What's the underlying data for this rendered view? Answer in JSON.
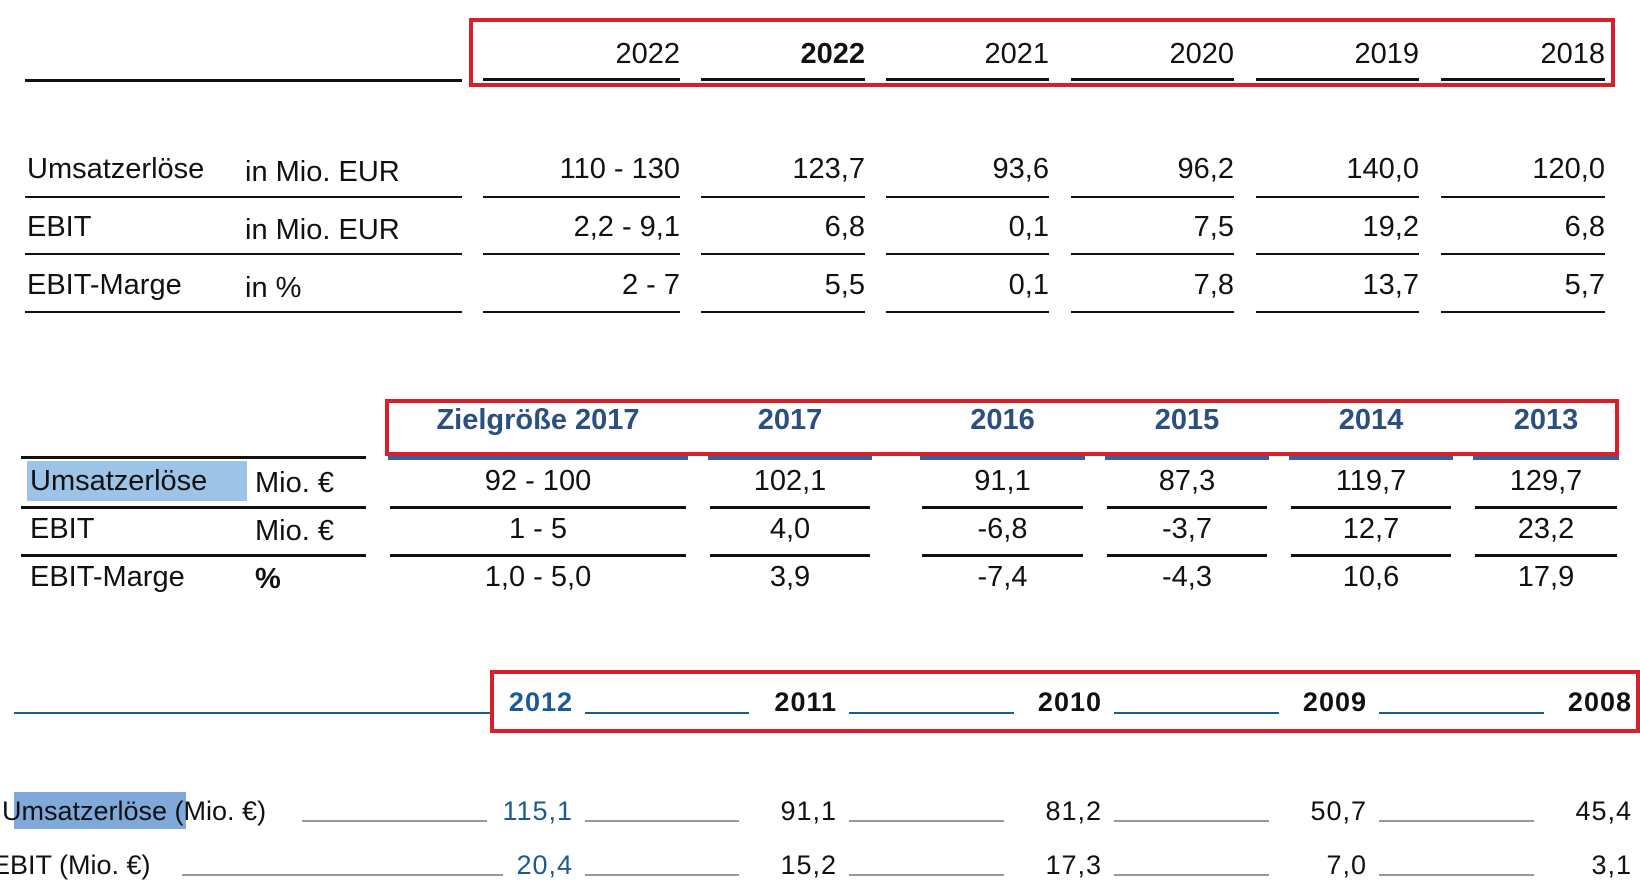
{
  "table_2018_2022": {
    "headers": [
      "2022",
      "2022",
      "2021",
      "2020",
      "2019",
      "2018"
    ],
    "header_bold": [
      false,
      true,
      false,
      false,
      false,
      false
    ],
    "rows": [
      {
        "label": "Umsatzerlöse",
        "unit": "in Mio. EUR",
        "values": [
          "110 - 130",
          "123,7",
          "93,6",
          "96,2",
          "140,0",
          "120,0"
        ]
      },
      {
        "label": "EBIT",
        "unit": "in Mio. EUR",
        "values": [
          "2,2 - 9,1",
          "6,8",
          "0,1",
          "7,5",
          "19,2",
          "6,8"
        ]
      },
      {
        "label": "EBIT-Marge",
        "unit": "in %",
        "values": [
          "2 - 7",
          "5,5",
          "0,1",
          "7,8",
          "13,7",
          "5,7"
        ]
      }
    ]
  },
  "table_2013_2017": {
    "headers": [
      "Zielgröße 2017",
      "2017",
      "2016",
      "2015",
      "2014",
      "2013"
    ],
    "rows": [
      {
        "label": "Umsatzerlöse",
        "unit": "Mio. €",
        "values": [
          "92 - 100",
          "102,1",
          "91,1",
          "87,3",
          "119,7",
          "129,7"
        ]
      },
      {
        "label": "EBIT",
        "unit": "Mio. €",
        "values": [
          "1 - 5",
          "4,0",
          "-6,8",
          "-3,7",
          "12,7",
          "23,2"
        ]
      },
      {
        "label": "EBIT-Marge",
        "unit": "%",
        "values": [
          "1,0 - 5,0",
          "3,9",
          "-7,4",
          "-4,3",
          "10,6",
          "17,9"
        ]
      }
    ]
  },
  "table_2008_2012": {
    "headers": [
      "2012",
      "2011",
      "2010",
      "2009",
      "2008"
    ],
    "rows": [
      {
        "label_highlight": "Umsatzerlöse",
        "label_rest": " (Mio. €)",
        "values": [
          "115,1",
          "91,1",
          "81,2",
          "50,7",
          "45,4"
        ]
      },
      {
        "label_highlight": "",
        "label_rest": "EBIT (Mio. €)",
        "values": [
          "20,4",
          "15,2",
          "17,3",
          "7,0",
          "3,1"
        ]
      }
    ]
  },
  "colors": {
    "highlight_box": "#d9202a",
    "header_blue": "#2a4f80",
    "value_blue": "#1a5a96",
    "label_highlight": "#9dc3e6"
  }
}
